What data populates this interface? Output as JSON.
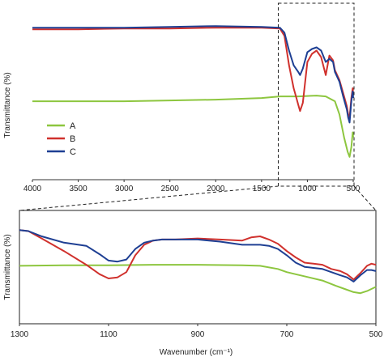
{
  "chart_data": [
    {
      "type": "line",
      "panel": "full-spectrum",
      "xlabel": "",
      "ylabel": "Transmittance (%)",
      "xlim": [
        4000,
        500
      ],
      "x_reversed": true,
      "x_ticks": [
        "4000",
        "3500",
        "3000",
        "2500",
        "2000",
        "1500",
        "1000",
        "500"
      ],
      "ylim": [
        0,
        100
      ],
      "grid": false,
      "legend_position": "left",
      "zoom_region": [
        1300,
        500
      ],
      "series": [
        {
          "name": "A",
          "color": "#8dc63f",
          "x": [
            4000,
            3500,
            3000,
            2500,
            2000,
            1500,
            1300,
            1100,
            900,
            800,
            700,
            650,
            600,
            560,
            540,
            520,
            505,
            500
          ],
          "y": [
            44,
            44,
            44,
            44.5,
            45,
            46,
            47,
            47,
            47.5,
            47,
            44,
            36,
            22,
            13,
            10,
            16,
            25,
            22
          ]
        },
        {
          "name": "B",
          "color": "#d0312d",
          "x": [
            4000,
            3500,
            3000,
            2500,
            2000,
            1500,
            1300,
            1250,
            1200,
            1150,
            1120,
            1100,
            1080,
            1050,
            1000,
            950,
            900,
            850,
            800,
            760,
            720,
            700,
            650,
            610,
            570,
            555,
            540,
            520,
            505,
            500
          ],
          "y": [
            88,
            88,
            88.5,
            88.5,
            89,
            89,
            88.5,
            84,
            66,
            52,
            46,
            42,
            38,
            43,
            68,
            73,
            75,
            71,
            60,
            72,
            69,
            63,
            57,
            49,
            41,
            36,
            34,
            46,
            52,
            48
          ]
        },
        {
          "name": "C",
          "color": "#1e3f93",
          "x": [
            4000,
            3500,
            3000,
            2500,
            2000,
            1500,
            1300,
            1250,
            1200,
            1150,
            1100,
            1080,
            1050,
            1000,
            950,
            900,
            850,
            800,
            760,
            720,
            700,
            650,
            610,
            570,
            555,
            540,
            520,
            505,
            500
          ],
          "y": [
            89,
            89,
            89,
            89.5,
            90,
            89.5,
            89,
            86,
            75,
            66,
            62,
            60,
            64,
            74,
            76,
            77,
            75,
            68,
            70,
            68,
            62,
            56,
            47,
            39,
            34,
            31,
            44,
            50,
            46
          ]
        }
      ]
    },
    {
      "type": "line",
      "panel": "zoomed-spectrum",
      "xlabel": "Wavenumber (cm⁻¹)",
      "ylabel": "Transmittance (%)",
      "xlim": [
        1300,
        500
      ],
      "x_reversed": true,
      "x_ticks": [
        "1300",
        "1100",
        "900",
        "700",
        "500"
      ],
      "ylim": [
        0,
        100
      ],
      "grid": false,
      "series": [
        {
          "name": "A",
          "color": "#8dc63f",
          "x": [
            1300,
            1200,
            1100,
            1000,
            900,
            800,
            760,
            720,
            700,
            680,
            650,
            620,
            590,
            570,
            550,
            535,
            520,
            500
          ],
          "y": [
            52,
            52.5,
            52.5,
            53,
            53,
            52.5,
            52,
            49,
            46,
            44,
            41,
            38,
            33,
            30,
            27,
            26,
            28,
            32
          ]
        },
        {
          "name": "B",
          "color": "#d0312d",
          "x": [
            1300,
            1280,
            1250,
            1200,
            1150,
            1120,
            1100,
            1080,
            1060,
            1040,
            1020,
            1000,
            980,
            950,
            900,
            850,
            800,
            780,
            760,
            740,
            720,
            700,
            680,
            660,
            640,
            620,
            600,
            580,
            565,
            550,
            535,
            520,
            510,
            500
          ],
          "y": [
            86,
            85,
            78,
            66,
            53,
            44,
            40,
            41,
            46,
            62,
            72,
            76,
            77,
            77,
            78,
            77,
            76,
            79,
            80,
            77,
            73,
            66,
            60,
            55,
            54,
            53,
            49,
            47,
            44,
            39,
            45,
            52,
            54,
            53
          ]
        },
        {
          "name": "C",
          "color": "#1e3f93",
          "x": [
            1300,
            1280,
            1250,
            1200,
            1150,
            1120,
            1100,
            1080,
            1060,
            1040,
            1020,
            1000,
            980,
            950,
            900,
            850,
            800,
            780,
            760,
            740,
            720,
            700,
            680,
            660,
            640,
            620,
            600,
            580,
            565,
            550,
            535,
            520,
            510,
            500
          ],
          "y": [
            86,
            85,
            80,
            74,
            71,
            63,
            57,
            56,
            58,
            68,
            74,
            76,
            77,
            77,
            77,
            75,
            72,
            72,
            72,
            71,
            68,
            62,
            55,
            51,
            50,
            49,
            46,
            43,
            41,
            37,
            43,
            48,
            48,
            47
          ]
        }
      ]
    }
  ]
}
